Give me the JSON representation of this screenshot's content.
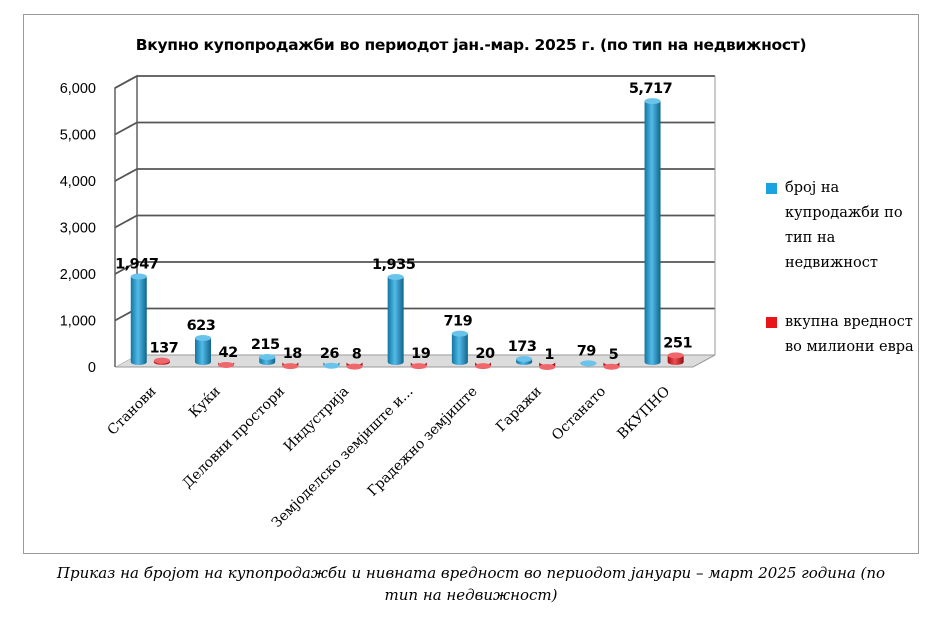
{
  "chart_data": {
    "type": "bar",
    "title": "Вкупно купопродажби во периодот јан.-мар. 2025 г. (по тип на недвижност)",
    "categories": [
      "Станови",
      "Куќи",
      "Деловни простори",
      "Индустрија",
      "Земјоделско земјиште и...",
      "Градежно земјиште",
      "Гаражи",
      "Останато",
      "ВКУПНО"
    ],
    "series": [
      {
        "name": "број на купродажби по тип на недвижност",
        "color": "#1aa3e0",
        "values": [
          1947,
          623,
          215,
          26,
          1935,
          719,
          173,
          79,
          5717
        ]
      },
      {
        "name": "вкупна вредност во милиони евра",
        "color": "#e8151b",
        "values": [
          137,
          42,
          18,
          8,
          19,
          20,
          1,
          5,
          251
        ]
      }
    ],
    "data_labels": [
      [
        "1,947",
        "623",
        "215",
        "26",
        "1,935",
        "719",
        "173",
        "79",
        "5,717"
      ],
      [
        "137",
        "42",
        "18",
        "8",
        "19",
        "20",
        "1",
        "5",
        "251"
      ]
    ],
    "y_ticks": [
      "0",
      "1,000",
      "2,000",
      "3,000",
      "4,000",
      "5,000",
      "6,000"
    ],
    "ylim": [
      0,
      6000
    ],
    "grid": true,
    "legend_position": "right",
    "legend": [
      {
        "lines": [
          "број на",
          "купродажби по",
          "тип на",
          "недвижност"
        ],
        "color": "#1aa3e0"
      },
      {
        "lines": [
          "вкупна вредност",
          "во милиони евра"
        ],
        "color": "#e8151b"
      }
    ]
  },
  "caption": {
    "line1": "Приказ на бројот на купопродажби и нивната вредност во периодот јануари – март 2025 година (по",
    "line2": "тип на недвижност)"
  }
}
